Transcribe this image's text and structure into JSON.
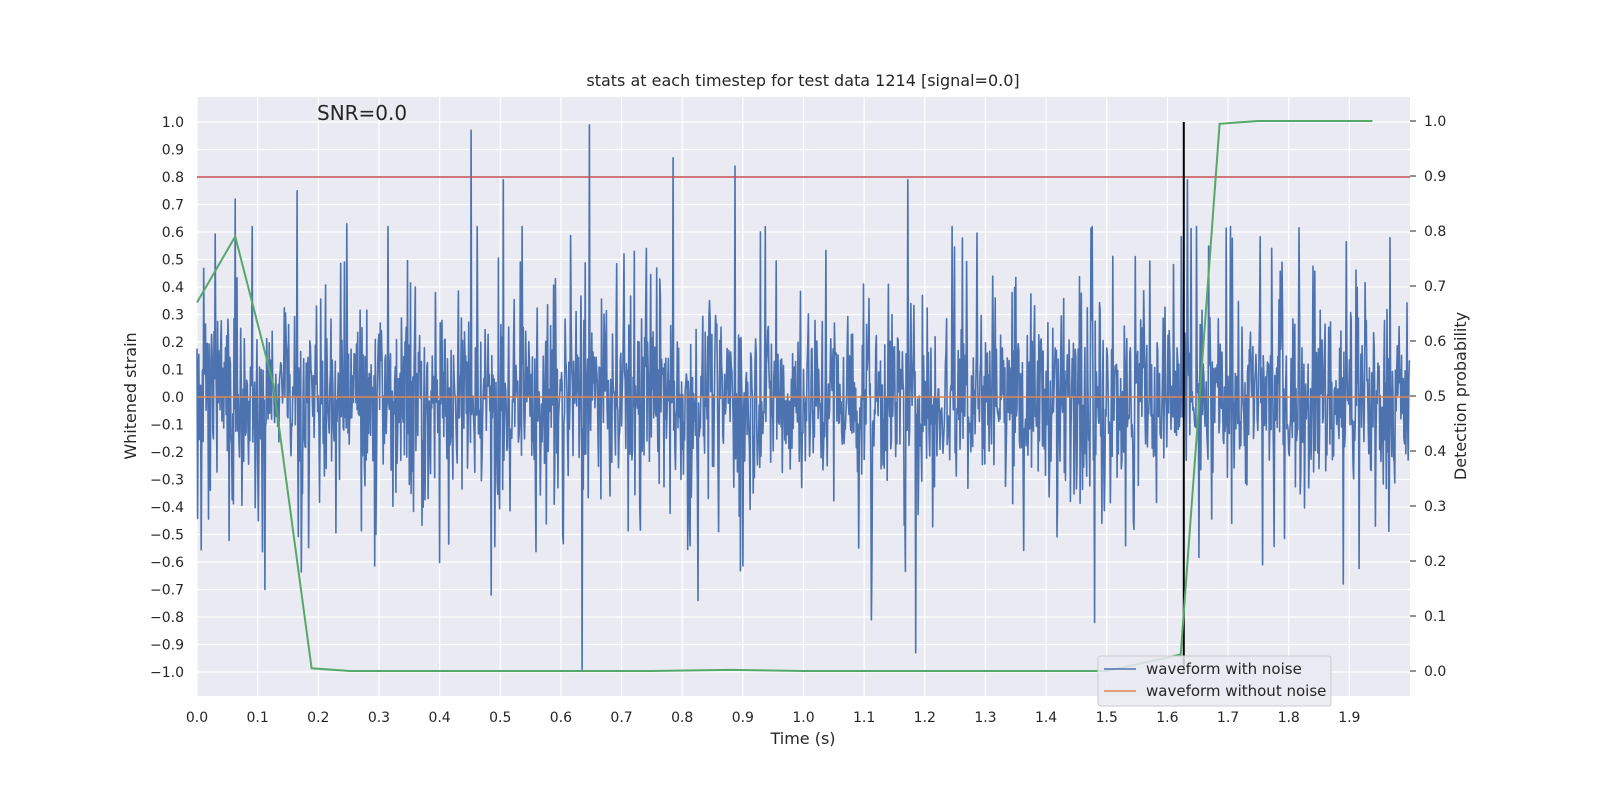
{
  "chart_data": {
    "type": "line",
    "title": "stats at each timestep for test data 1214 [signal=0.0]",
    "annotation": "SNR=0.0",
    "xlabel": "Time (s)",
    "ylabel": "Whitened strain",
    "y2label": "Detection probability",
    "xlim": [
      0.0,
      2.0
    ],
    "ylim": [
      -1.1,
      1.1
    ],
    "y2lim": [
      -0.05,
      1.05
    ],
    "x_ticks": [
      "0.0",
      "0.1",
      "0.2",
      "0.3",
      "0.4",
      "0.5",
      "0.6",
      "0.7",
      "0.8",
      "0.9",
      "1.0",
      "1.1",
      "1.2",
      "1.3",
      "1.4",
      "1.5",
      "1.6",
      "1.7",
      "1.8",
      "1.9"
    ],
    "y_ticks": [
      "1.0",
      "0.9",
      "0.8",
      "0.7",
      "0.6",
      "0.5",
      "0.4",
      "0.3",
      "0.2",
      "0.1",
      "0.0",
      "−0.1",
      "−0.2",
      "−0.3",
      "−0.4",
      "−0.5",
      "−0.6",
      "−0.7",
      "−0.8",
      "−0.9",
      "−1.0"
    ],
    "y2_ticks": [
      "1.0",
      "0.9",
      "0.8",
      "0.7",
      "0.6",
      "0.5",
      "0.4",
      "0.3",
      "0.2",
      "0.1",
      "0.0"
    ],
    "threshold": 0.8,
    "event_time": 1.627,
    "event_ymin": -1.0,
    "event_ymax": 1.0,
    "noisy_waveform": {
      "name": "waveform with noise",
      "color": "#4c72b0",
      "amplitude_typical": 0.3,
      "peaks": [
        [
          0.063,
          0.72
        ],
        [
          0.165,
          0.75
        ],
        [
          0.247,
          0.63
        ],
        [
          0.452,
          0.97
        ],
        [
          0.505,
          0.79
        ],
        [
          0.647,
          0.99
        ],
        [
          0.785,
          0.87
        ],
        [
          0.887,
          0.84
        ],
        [
          1.172,
          0.79
        ],
        [
          1.633,
          0.79
        ]
      ],
      "troughs": [
        [
          0.112,
          -0.7
        ],
        [
          0.485,
          -0.72
        ],
        [
          0.635,
          -0.99
        ],
        [
          0.826,
          -0.74
        ],
        [
          1.112,
          -0.81
        ],
        [
          1.185,
          -0.93
        ],
        [
          1.48,
          -0.82
        ],
        [
          1.89,
          -0.68
        ]
      ]
    },
    "clean_waveform": {
      "name": "waveform without noise",
      "color": "#dd8452",
      "x": [
        0.0,
        2.0
      ],
      "y": [
        0.0,
        0.0
      ]
    },
    "detection_probability": {
      "color": "#55a868",
      "x": [
        0.0,
        0.063,
        0.126,
        0.189,
        0.252,
        0.5,
        0.75,
        0.88,
        1.0,
        1.25,
        1.5,
        1.622,
        1.686,
        1.749,
        1.8,
        1.875,
        1.938
      ],
      "y": [
        0.67,
        0.79,
        0.52,
        0.005,
        0.0,
        0.0,
        0.0,
        0.002,
        0.0,
        0.0,
        0.0,
        0.03,
        0.995,
        1.0,
        1.0,
        1.0,
        1.0
      ]
    },
    "legend": [
      "waveform with noise",
      "waveform without noise"
    ],
    "legend_position": "lower-right"
  }
}
